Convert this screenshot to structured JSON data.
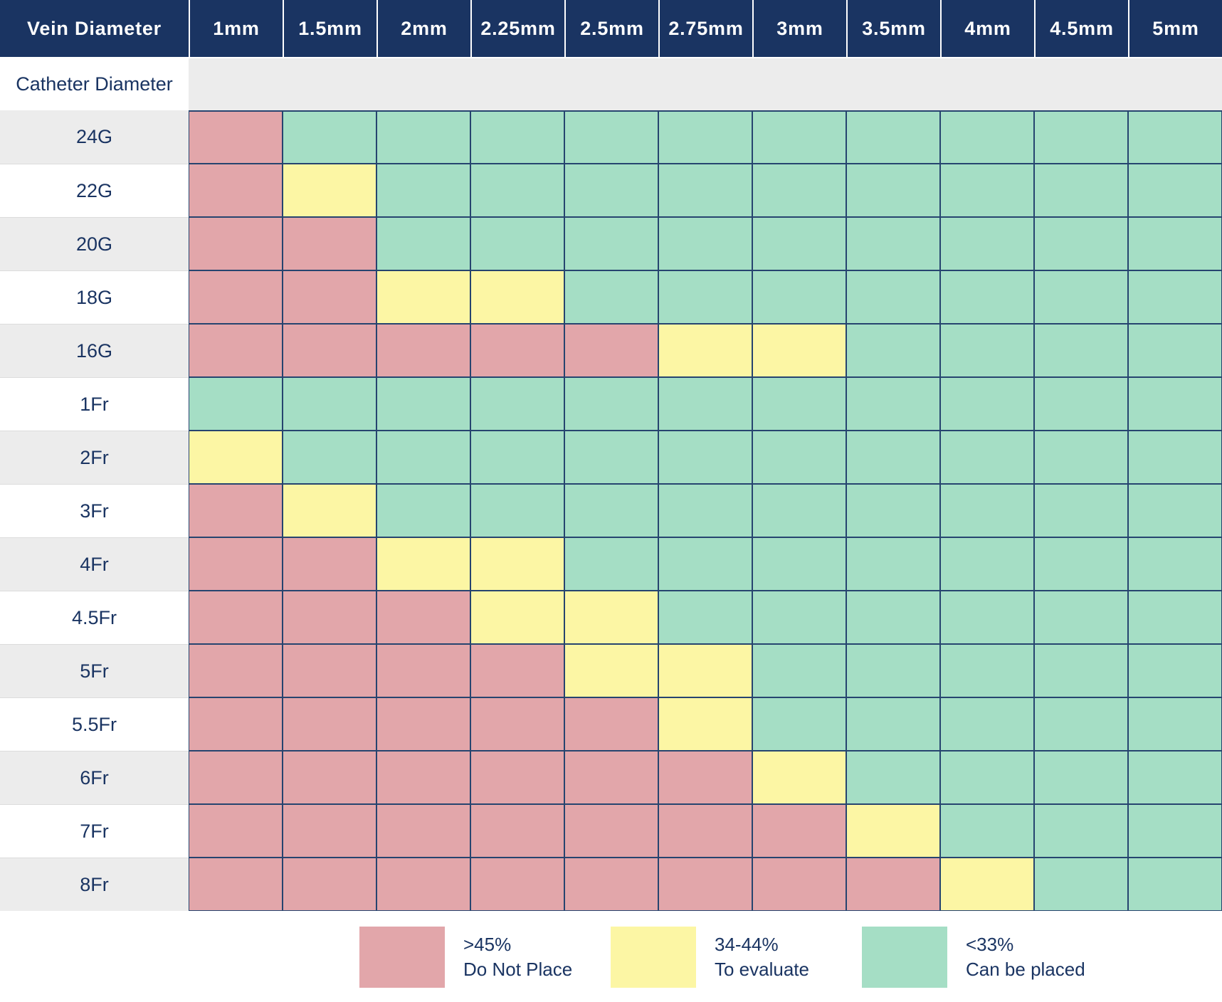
{
  "table": {
    "corner_label": "Vein Diameter",
    "row_header_label": "Catheter Diameter"
  },
  "legend": {
    "items": [
      {
        "range": ">45%",
        "label": "Do Not Place",
        "color": "#e2a6aa",
        "name": "do-not-place"
      },
      {
        "range": "34-44%",
        "label": "To evaluate",
        "color": "#fcf6a4",
        "name": "to-evaluate"
      },
      {
        "range": "<33%",
        "label": "Can be placed",
        "color": "#a5dec5",
        "name": "can-be-placed"
      }
    ]
  },
  "colors": {
    "header_bg": "#1a3462",
    "text_navy": "#1a3462",
    "grid_border": "#26446f",
    "row_shade": "#ececec",
    "red": "#e2a6aa",
    "yellow": "#fcf6a4",
    "green": "#a5dec5"
  },
  "chart_data": {
    "type": "heatmap",
    "x_label": "Vein Diameter",
    "y_label": "Catheter Diameter",
    "x_categories": [
      "1mm",
      "1.5mm",
      "2mm",
      "2.25mm",
      "2.5mm",
      "2.75mm",
      "3mm",
      "3.5mm",
      "4mm",
      "4.5mm",
      "5mm"
    ],
    "y_categories": [
      "24G",
      "22G",
      "20G",
      "18G",
      "16G",
      "1Fr",
      "2Fr",
      "3Fr",
      "4Fr",
      "4.5Fr",
      "5Fr",
      "5.5Fr",
      "6Fr",
      "7Fr",
      "8Fr"
    ],
    "values": [
      [
        "R",
        "G",
        "G",
        "G",
        "G",
        "G",
        "G",
        "G",
        "G",
        "G",
        "G"
      ],
      [
        "R",
        "Y",
        "G",
        "G",
        "G",
        "G",
        "G",
        "G",
        "G",
        "G",
        "G"
      ],
      [
        "R",
        "R",
        "G",
        "G",
        "G",
        "G",
        "G",
        "G",
        "G",
        "G",
        "G"
      ],
      [
        "R",
        "R",
        "Y",
        "Y",
        "G",
        "G",
        "G",
        "G",
        "G",
        "G",
        "G"
      ],
      [
        "R",
        "R",
        "R",
        "R",
        "R",
        "Y",
        "Y",
        "G",
        "G",
        "G",
        "G"
      ],
      [
        "G",
        "G",
        "G",
        "G",
        "G",
        "G",
        "G",
        "G",
        "G",
        "G",
        "G"
      ],
      [
        "Y",
        "G",
        "G",
        "G",
        "G",
        "G",
        "G",
        "G",
        "G",
        "G",
        "G"
      ],
      [
        "R",
        "Y",
        "G",
        "G",
        "G",
        "G",
        "G",
        "G",
        "G",
        "G",
        "G"
      ],
      [
        "R",
        "R",
        "Y",
        "Y",
        "G",
        "G",
        "G",
        "G",
        "G",
        "G",
        "G"
      ],
      [
        "R",
        "R",
        "R",
        "Y",
        "Y",
        "G",
        "G",
        "G",
        "G",
        "G",
        "G"
      ],
      [
        "R",
        "R",
        "R",
        "R",
        "Y",
        "Y",
        "G",
        "G",
        "G",
        "G",
        "G"
      ],
      [
        "R",
        "R",
        "R",
        "R",
        "R",
        "Y",
        "G",
        "G",
        "G",
        "G",
        "G"
      ],
      [
        "R",
        "R",
        "R",
        "R",
        "R",
        "R",
        "Y",
        "G",
        "G",
        "G",
        "G"
      ],
      [
        "R",
        "R",
        "R",
        "R",
        "R",
        "R",
        "R",
        "Y",
        "G",
        "G",
        "G"
      ],
      [
        "R",
        "R",
        "R",
        "R",
        "R",
        "R",
        "R",
        "R",
        "Y",
        "G",
        "G"
      ]
    ],
    "value_meaning": {
      "R": ">45% Do Not Place",
      "Y": "34-44% To evaluate",
      "G": "<33% Can be placed"
    }
  }
}
